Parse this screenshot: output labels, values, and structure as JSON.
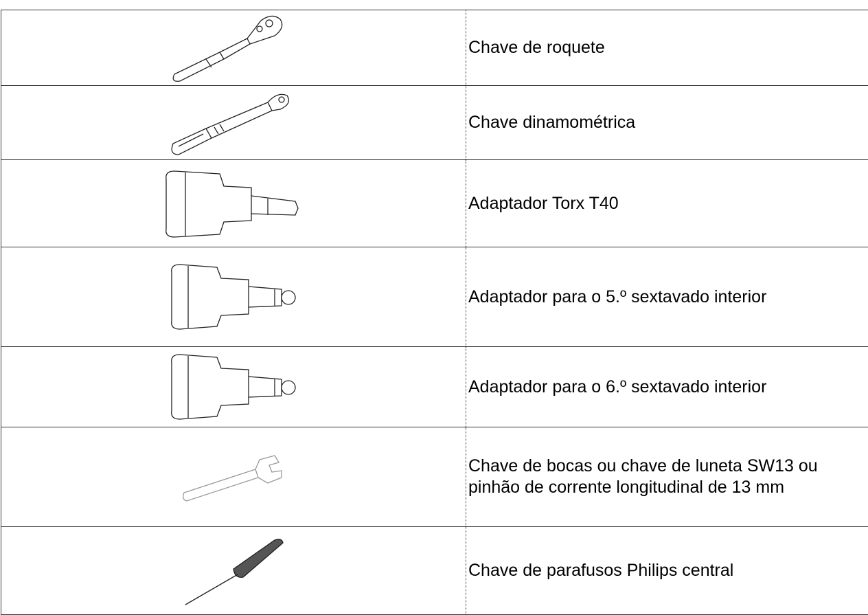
{
  "table": {
    "rows": [
      {
        "tool": "Chave de roquete"
      },
      {
        "tool": "Chave dinamométrica"
      },
      {
        "tool": "Adaptador Torx T40"
      },
      {
        "tool": "Adaptador para o 5.º sextavado interior"
      },
      {
        "tool": "Adaptador para o 6.º sextavado interior"
      },
      {
        "tool": "Chave de bocas ou chave de luneta SW13 ou pinhão de corrente longitudinal de 13 mm"
      },
      {
        "tool": "Chave de parafusos Philips central"
      }
    ]
  }
}
